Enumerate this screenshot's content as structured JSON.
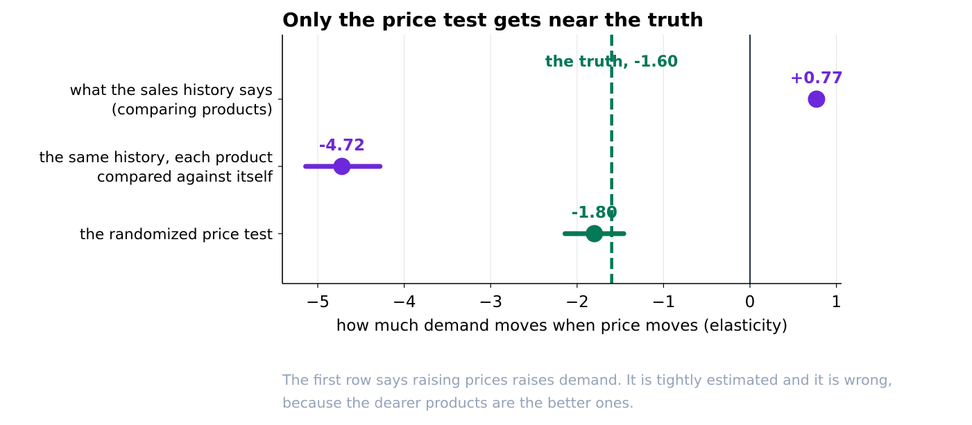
{
  "chart_data": {
    "type": "dot-interval",
    "title": "Only the price test gets near the truth",
    "xlabel": "how much demand moves when price moves (elasticity)",
    "ylabel": "",
    "xlim": [
      -5.42,
      1.07
    ],
    "xticks": [
      -5,
      -4,
      -3,
      -2,
      -1,
      0,
      1
    ],
    "xtick_labels": [
      "−5",
      "−4",
      "−3",
      "−2",
      "−1",
      "0",
      "1"
    ],
    "grid": "vertical",
    "reference_lines": [
      {
        "x": -1.6,
        "style": "dashed",
        "color": "#047857",
        "label": "the truth, -1.60"
      },
      {
        "x": 0,
        "style": "solid",
        "color": "#334155",
        "label": ""
      }
    ],
    "rows": [
      {
        "label_lines": [
          "what the sales history says",
          "(comparing products)"
        ],
        "estimate": 0.77,
        "ci": [
          0.77,
          0.77
        ],
        "value_label": "+0.77",
        "color": "#6d28d9"
      },
      {
        "label_lines": [
          "the same history, each product",
          "compared against itself"
        ],
        "estimate": -4.72,
        "ci": [
          -5.14,
          -4.28
        ],
        "value_label": "-4.72",
        "color": "#6d28d9"
      },
      {
        "label_lines": [
          "the randomized price test"
        ],
        "estimate": -1.8,
        "ci": [
          -2.14,
          -1.46
        ],
        "value_label": "-1.80",
        "color": "#047857"
      }
    ]
  },
  "caption": {
    "line1": "The first row says raising prices raises demand. It is tightly estimated and it is wrong,",
    "line2": "because the dearer products are the better ones."
  }
}
